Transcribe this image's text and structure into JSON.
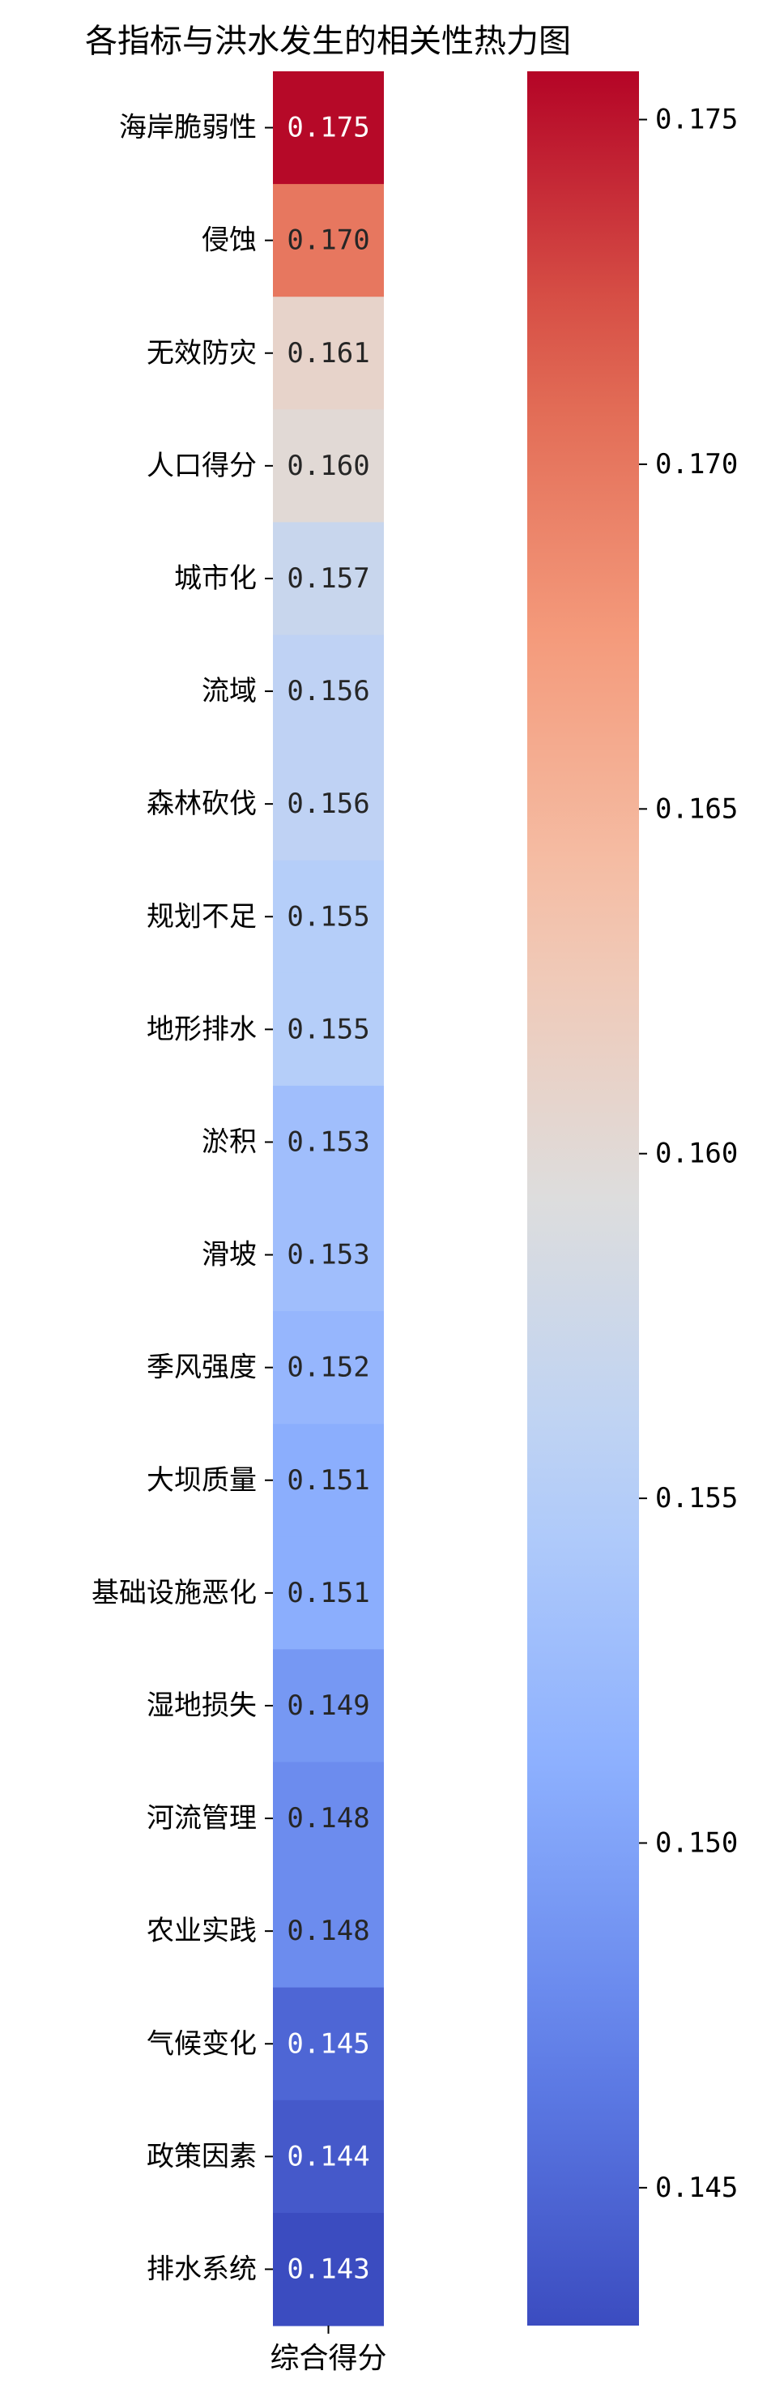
{
  "chart_data": {
    "type": "heatmap",
    "title": "各指标与洪水发生的相关性热力图",
    "columns": [
      "综合得分"
    ],
    "rows": [
      "海岸脆弱性",
      "侵蚀",
      "无效防灾",
      "人口得分",
      "城市化",
      "流域",
      "森林砍伐",
      "规划不足",
      "地形排水",
      "淤积",
      "滑坡",
      "季风强度",
      "大坝质量",
      "基础设施恶化",
      "湿地损失",
      "河流管理",
      "农业实践",
      "气候变化",
      "政策因素",
      "排水系统"
    ],
    "values": [
      0.1755,
      0.17,
      0.161,
      0.16,
      0.157,
      0.156,
      0.156,
      0.155,
      0.155,
      0.153,
      0.153,
      0.152,
      0.151,
      0.151,
      0.149,
      0.148,
      0.148,
      0.145,
      0.144,
      0.143
    ],
    "cell_labels": [
      "0.175",
      "0.170",
      "0.161",
      "0.160",
      "0.157",
      "0.156",
      "0.156",
      "0.155",
      "0.155",
      "0.153",
      "0.153",
      "0.152",
      "0.151",
      "0.151",
      "0.149",
      "0.148",
      "0.148",
      "0.145",
      "0.144",
      "0.143"
    ],
    "colormap": "coolwarm",
    "colorbar": {
      "range": [
        0.143,
        0.1757
      ],
      "ticks": [
        0.145,
        0.15,
        0.155,
        0.16,
        0.165,
        0.17,
        0.175
      ],
      "tick_labels": [
        "0.145",
        "0.150",
        "0.155",
        "0.160",
        "0.165",
        "0.170",
        "0.175"
      ]
    },
    "colors": {
      "low": "#3b4cc0",
      "mid": "#dddddd",
      "high": "#b40426",
      "dark_text": "#262626",
      "light_text": "#ffffff"
    }
  }
}
